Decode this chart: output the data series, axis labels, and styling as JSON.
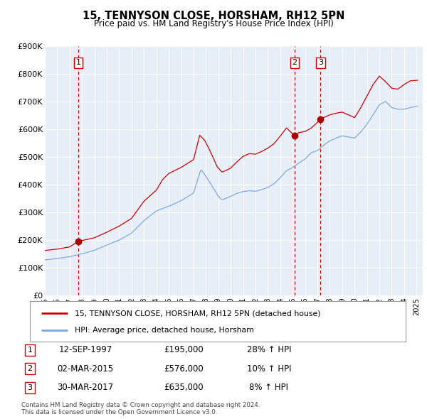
{
  "title": "15, TENNYSON CLOSE, HORSHAM, RH12 5PN",
  "subtitle": "Price paid vs. HM Land Registry's House Price Index (HPI)",
  "ylim": [
    0,
    900000
  ],
  "yticks": [
    0,
    100000,
    200000,
    300000,
    400000,
    500000,
    600000,
    700000,
    800000,
    900000
  ],
  "ytick_labels": [
    "£0",
    "£100K",
    "£200K",
    "£300K",
    "£400K",
    "£500K",
    "£600K",
    "£700K",
    "£800K",
    "£900K"
  ],
  "xlim_start": 1995.0,
  "xlim_end": 2025.5,
  "background_color": "#ffffff",
  "plot_bg_color": "#e8eef8",
  "grid_color": "#ffffff",
  "sale_line_color": "#cc0000",
  "hpi_line_color": "#7aaadd",
  "sale_dot_color": "#aa0000",
  "vline_color": "#cc0000",
  "legend_label_sale": "15, TENNYSON CLOSE, HORSHAM, RH12 5PN (detached house)",
  "legend_label_hpi": "HPI: Average price, detached house, Horsham",
  "transactions": [
    {
      "num": 1,
      "date": "12-SEP-1997",
      "price": 195000,
      "pct": "28%",
      "year": 1997.7
    },
    {
      "num": 2,
      "date": "02-MAR-2015",
      "price": 576000,
      "pct": "10%",
      "year": 2015.17
    },
    {
      "num": 3,
      "date": "30-MAR-2017",
      "price": 635000,
      "pct": "8%",
      "year": 2017.25
    }
  ],
  "footer": "Contains HM Land Registry data © Crown copyright and database right 2024.\nThis data is licensed under the Open Government Licence v3.0."
}
